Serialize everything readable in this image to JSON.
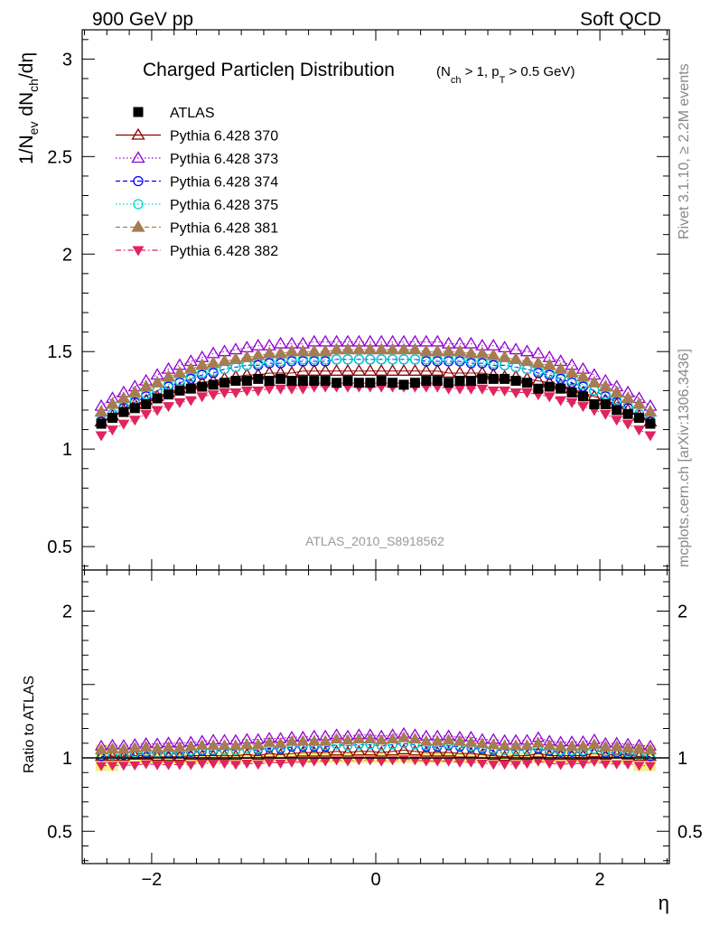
{
  "header": {
    "left": "900 GeV pp",
    "right": "Soft QCD"
  },
  "side_labels": {
    "rivet": "Rivet 3.1.10, ≥ 2.2M events",
    "mcplots": "mcplots.cern.ch [arXiv:1306.3436]"
  },
  "colors": {
    "ATLAS": "#000000",
    "s370": "#8b0000",
    "s373": "#9400d3",
    "s374": "#0000ff",
    "s375": "#00d4c8",
    "s381": "#a67c52",
    "s382": "#e0245e",
    "band": "#f5f089"
  },
  "chart_data": [
    {
      "type": "scatter",
      "title": "Charged Particleη Distribution",
      "subtitle": "(N_ch > 1, p_T > 0.5 GeV)",
      "xlabel": "η",
      "ylabel": "1/N_ev dN_ch/dη",
      "watermark": "ATLAS_2010_S8918562",
      "xlim": [
        -2.62,
        2.62
      ],
      "ylim": [
        0.38,
        3.15
      ],
      "yticks": [
        0.5,
        1,
        1.5,
        2,
        2.5,
        3
      ],
      "ytick_labels": [
        "0.5",
        "1",
        "1.5",
        "2",
        "2.5",
        "3"
      ],
      "legend_position": "top-left",
      "x": [
        -2.45,
        -2.35,
        -2.25,
        -2.15,
        -2.05,
        -1.95,
        -1.85,
        -1.75,
        -1.65,
        -1.55,
        -1.45,
        -1.35,
        -1.25,
        -1.15,
        -1.05,
        -0.95,
        -0.85,
        -0.75,
        -0.65,
        -0.55,
        -0.45,
        -0.35,
        -0.25,
        -0.15,
        -0.05,
        0.05,
        0.15,
        0.25,
        0.35,
        0.45,
        0.55,
        0.65,
        0.75,
        0.85,
        0.95,
        1.05,
        1.15,
        1.25,
        1.35,
        1.45,
        1.55,
        1.65,
        1.75,
        1.85,
        1.95,
        2.05,
        2.15,
        2.25,
        2.35,
        2.45
      ],
      "series": [
        {
          "name": "ATLAS",
          "marker": "square",
          "values": [
            1.13,
            1.16,
            1.19,
            1.21,
            1.23,
            1.26,
            1.28,
            1.3,
            1.31,
            1.32,
            1.33,
            1.34,
            1.35,
            1.35,
            1.36,
            1.35,
            1.36,
            1.35,
            1.35,
            1.35,
            1.35,
            1.34,
            1.35,
            1.34,
            1.34,
            1.35,
            1.34,
            1.33,
            1.34,
            1.35,
            1.35,
            1.34,
            1.35,
            1.35,
            1.36,
            1.36,
            1.36,
            1.35,
            1.34,
            1.31,
            1.32,
            1.31,
            1.29,
            1.27,
            1.23,
            1.23,
            1.2,
            1.18,
            1.16,
            1.13
          ]
        },
        {
          "name": "Pythia 6.428 370",
          "marker": "triangle-open",
          "line": "solid",
          "values": [
            1.14,
            1.17,
            1.2,
            1.23,
            1.25,
            1.27,
            1.29,
            1.31,
            1.33,
            1.34,
            1.35,
            1.36,
            1.37,
            1.38,
            1.38,
            1.39,
            1.39,
            1.39,
            1.4,
            1.4,
            1.4,
            1.4,
            1.4,
            1.4,
            1.4,
            1.4,
            1.4,
            1.4,
            1.4,
            1.4,
            1.4,
            1.39,
            1.39,
            1.39,
            1.39,
            1.38,
            1.37,
            1.37,
            1.36,
            1.35,
            1.34,
            1.33,
            1.31,
            1.29,
            1.27,
            1.25,
            1.23,
            1.2,
            1.17,
            1.14
          ]
        },
        {
          "name": "Pythia 6.428 373",
          "marker": "triangle-open",
          "line": "dotted",
          "values": [
            1.22,
            1.26,
            1.29,
            1.32,
            1.35,
            1.38,
            1.41,
            1.43,
            1.45,
            1.47,
            1.49,
            1.5,
            1.51,
            1.52,
            1.53,
            1.53,
            1.54,
            1.54,
            1.54,
            1.55,
            1.55,
            1.55,
            1.55,
            1.55,
            1.55,
            1.55,
            1.55,
            1.55,
            1.55,
            1.55,
            1.55,
            1.54,
            1.54,
            1.54,
            1.53,
            1.53,
            1.52,
            1.51,
            1.5,
            1.49,
            1.47,
            1.45,
            1.43,
            1.41,
            1.38,
            1.35,
            1.32,
            1.29,
            1.26,
            1.22
          ]
        },
        {
          "name": "Pythia 6.428 374",
          "marker": "circle-open",
          "line": "dashed",
          "values": [
            1.14,
            1.18,
            1.21,
            1.24,
            1.27,
            1.3,
            1.32,
            1.34,
            1.36,
            1.38,
            1.39,
            1.41,
            1.42,
            1.43,
            1.43,
            1.44,
            1.44,
            1.45,
            1.45,
            1.45,
            1.45,
            1.46,
            1.46,
            1.46,
            1.46,
            1.46,
            1.46,
            1.46,
            1.46,
            1.45,
            1.45,
            1.45,
            1.45,
            1.44,
            1.44,
            1.43,
            1.43,
            1.42,
            1.41,
            1.39,
            1.38,
            1.36,
            1.34,
            1.32,
            1.3,
            1.27,
            1.24,
            1.21,
            1.18,
            1.14
          ]
        },
        {
          "name": "Pythia 6.428 375",
          "marker": "circle-open",
          "line": "dotted",
          "values": [
            1.15,
            1.18,
            1.22,
            1.25,
            1.28,
            1.3,
            1.33,
            1.35,
            1.37,
            1.39,
            1.4,
            1.41,
            1.42,
            1.43,
            1.44,
            1.45,
            1.45,
            1.46,
            1.46,
            1.46,
            1.46,
            1.46,
            1.46,
            1.46,
            1.46,
            1.46,
            1.46,
            1.46,
            1.46,
            1.46,
            1.46,
            1.46,
            1.46,
            1.45,
            1.45,
            1.44,
            1.43,
            1.42,
            1.41,
            1.4,
            1.39,
            1.37,
            1.35,
            1.33,
            1.3,
            1.28,
            1.25,
            1.22,
            1.18,
            1.15
          ]
        },
        {
          "name": "Pythia 6.428 381",
          "marker": "triangle-filled",
          "line": "dashed",
          "values": [
            1.19,
            1.23,
            1.26,
            1.29,
            1.32,
            1.34,
            1.37,
            1.39,
            1.41,
            1.43,
            1.44,
            1.45,
            1.46,
            1.47,
            1.48,
            1.49,
            1.49,
            1.5,
            1.5,
            1.5,
            1.5,
            1.51,
            1.51,
            1.51,
            1.51,
            1.51,
            1.51,
            1.51,
            1.51,
            1.5,
            1.5,
            1.5,
            1.5,
            1.49,
            1.49,
            1.48,
            1.47,
            1.46,
            1.45,
            1.44,
            1.43,
            1.41,
            1.39,
            1.37,
            1.34,
            1.32,
            1.29,
            1.26,
            1.23,
            1.19
          ]
        },
        {
          "name": "Pythia 6.428 382",
          "marker": "triangle-down-filled",
          "line": "dashdot",
          "values": [
            1.07,
            1.1,
            1.13,
            1.15,
            1.18,
            1.2,
            1.22,
            1.24,
            1.25,
            1.27,
            1.28,
            1.29,
            1.29,
            1.3,
            1.3,
            1.31,
            1.31,
            1.31,
            1.31,
            1.32,
            1.32,
            1.32,
            1.32,
            1.32,
            1.32,
            1.32,
            1.32,
            1.32,
            1.32,
            1.32,
            1.32,
            1.31,
            1.31,
            1.31,
            1.31,
            1.3,
            1.3,
            1.29,
            1.29,
            1.28,
            1.27,
            1.25,
            1.24,
            1.22,
            1.2,
            1.18,
            1.15,
            1.13,
            1.1,
            1.07
          ]
        }
      ]
    },
    {
      "type": "scatter",
      "ylabel": "Ratio to ATLAS",
      "xlabel": "η",
      "xlim": [
        -2.62,
        2.62
      ],
      "ylim": [
        0.28,
        2.28
      ],
      "yticks": [
        0.5,
        1,
        2
      ],
      "ytick_labels": [
        "0.5",
        "1",
        "2"
      ],
      "xticks": [
        -2,
        0,
        2
      ],
      "xtick_labels": [
        "−2",
        "0",
        "2"
      ],
      "reference_line": 1,
      "band": {
        "x": [
          -2.45,
          -2.35,
          -2.25,
          -2.15,
          -2.05,
          -1.95,
          -1.85,
          -1.75,
          -1.65,
          -1.55,
          -1.45,
          -1.35,
          -1.25,
          -1.15,
          -1.05,
          -0.95,
          -0.85,
          -0.75,
          -0.65,
          -0.55,
          -0.45,
          -0.35,
          -0.25,
          -0.15,
          -0.05,
          0.05,
          0.15,
          0.25,
          0.35,
          0.45,
          0.55,
          0.65,
          0.75,
          0.85,
          0.95,
          1.05,
          1.15,
          1.25,
          1.35,
          1.45,
          1.55,
          1.65,
          1.75,
          1.85,
          1.95,
          2.05,
          2.15,
          2.25,
          2.35,
          2.45
        ],
        "half_width": [
          0.09,
          0.09,
          0.04,
          0.04,
          0.04,
          0.04,
          0.04,
          0.04,
          0.04,
          0.04,
          0.035,
          0.035,
          0.035,
          0.035,
          0.035,
          0.035,
          0.035,
          0.035,
          0.035,
          0.035,
          0.035,
          0.035,
          0.035,
          0.035,
          0.035,
          0.035,
          0.035,
          0.035,
          0.035,
          0.035,
          0.035,
          0.035,
          0.035,
          0.035,
          0.035,
          0.035,
          0.035,
          0.035,
          0.035,
          0.035,
          0.04,
          0.04,
          0.04,
          0.04,
          0.04,
          0.04,
          0.04,
          0.04,
          0.09,
          0.09
        ]
      },
      "series_from_main_divided_by": "ATLAS"
    }
  ]
}
